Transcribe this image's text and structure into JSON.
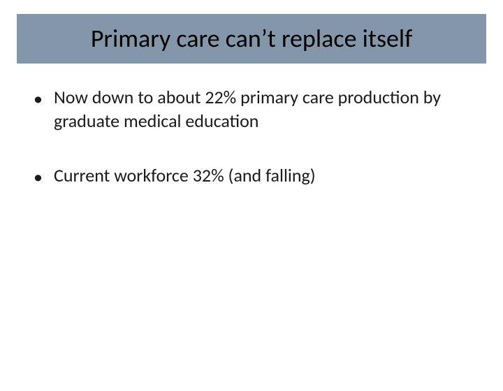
{
  "slide": {
    "title": "Primary care can’t replace itself",
    "title_bg_color": "#8496a9",
    "title_color": "#000000",
    "title_fontsize": 36,
    "background_color": "#ffffff",
    "bullets": [
      "Now down to about 22% primary care production by graduate medical education",
      "Current workforce 32% (and falling)"
    ],
    "bullet_color": "#1a1a1a",
    "bullet_fontsize": 26
  }
}
